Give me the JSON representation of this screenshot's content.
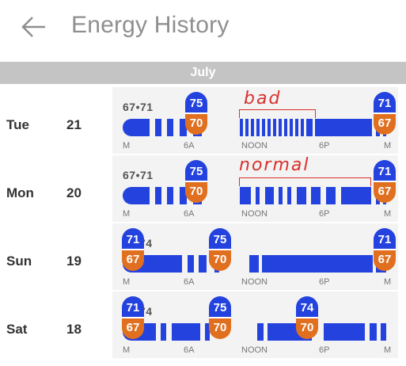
{
  "header": {
    "title": "Energy History",
    "back_icon": "arrow-left-icon"
  },
  "month": "July",
  "axis_labels": [
    "M",
    "6A",
    "NOON",
    "6P",
    "M"
  ],
  "colors": {
    "heat": "#2443de",
    "cool": "#e07020",
    "card": "#f3f3f3",
    "annotation": "#d9302b"
  },
  "rows": [
    {
      "day": "Tue",
      "date": "21",
      "range": "67•71",
      "annotation": "bad",
      "pills": [
        {
          "top": "75",
          "bottom": "70"
        },
        {
          "top": "71",
          "bottom": "67"
        }
      ]
    },
    {
      "day": "Mon",
      "date": "20",
      "range": "67•71",
      "annotation": "normal",
      "pills": [
        {
          "top": "75",
          "bottom": "70"
        },
        {
          "top": "71",
          "bottom": "67"
        }
      ]
    },
    {
      "day": "Sun",
      "date": "19",
      "range": "74",
      "pills": [
        {
          "top": "71",
          "bottom": "67"
        },
        {
          "top": "75",
          "bottom": "70"
        },
        {
          "top": "71",
          "bottom": "67"
        }
      ]
    },
    {
      "day": "Sat",
      "date": "18",
      "range": "74",
      "pills": [
        {
          "top": "71",
          "bottom": "67"
        },
        {
          "top": "75",
          "bottom": "70"
        },
        {
          "top": "74",
          "bottom": "70"
        }
      ]
    }
  ]
}
